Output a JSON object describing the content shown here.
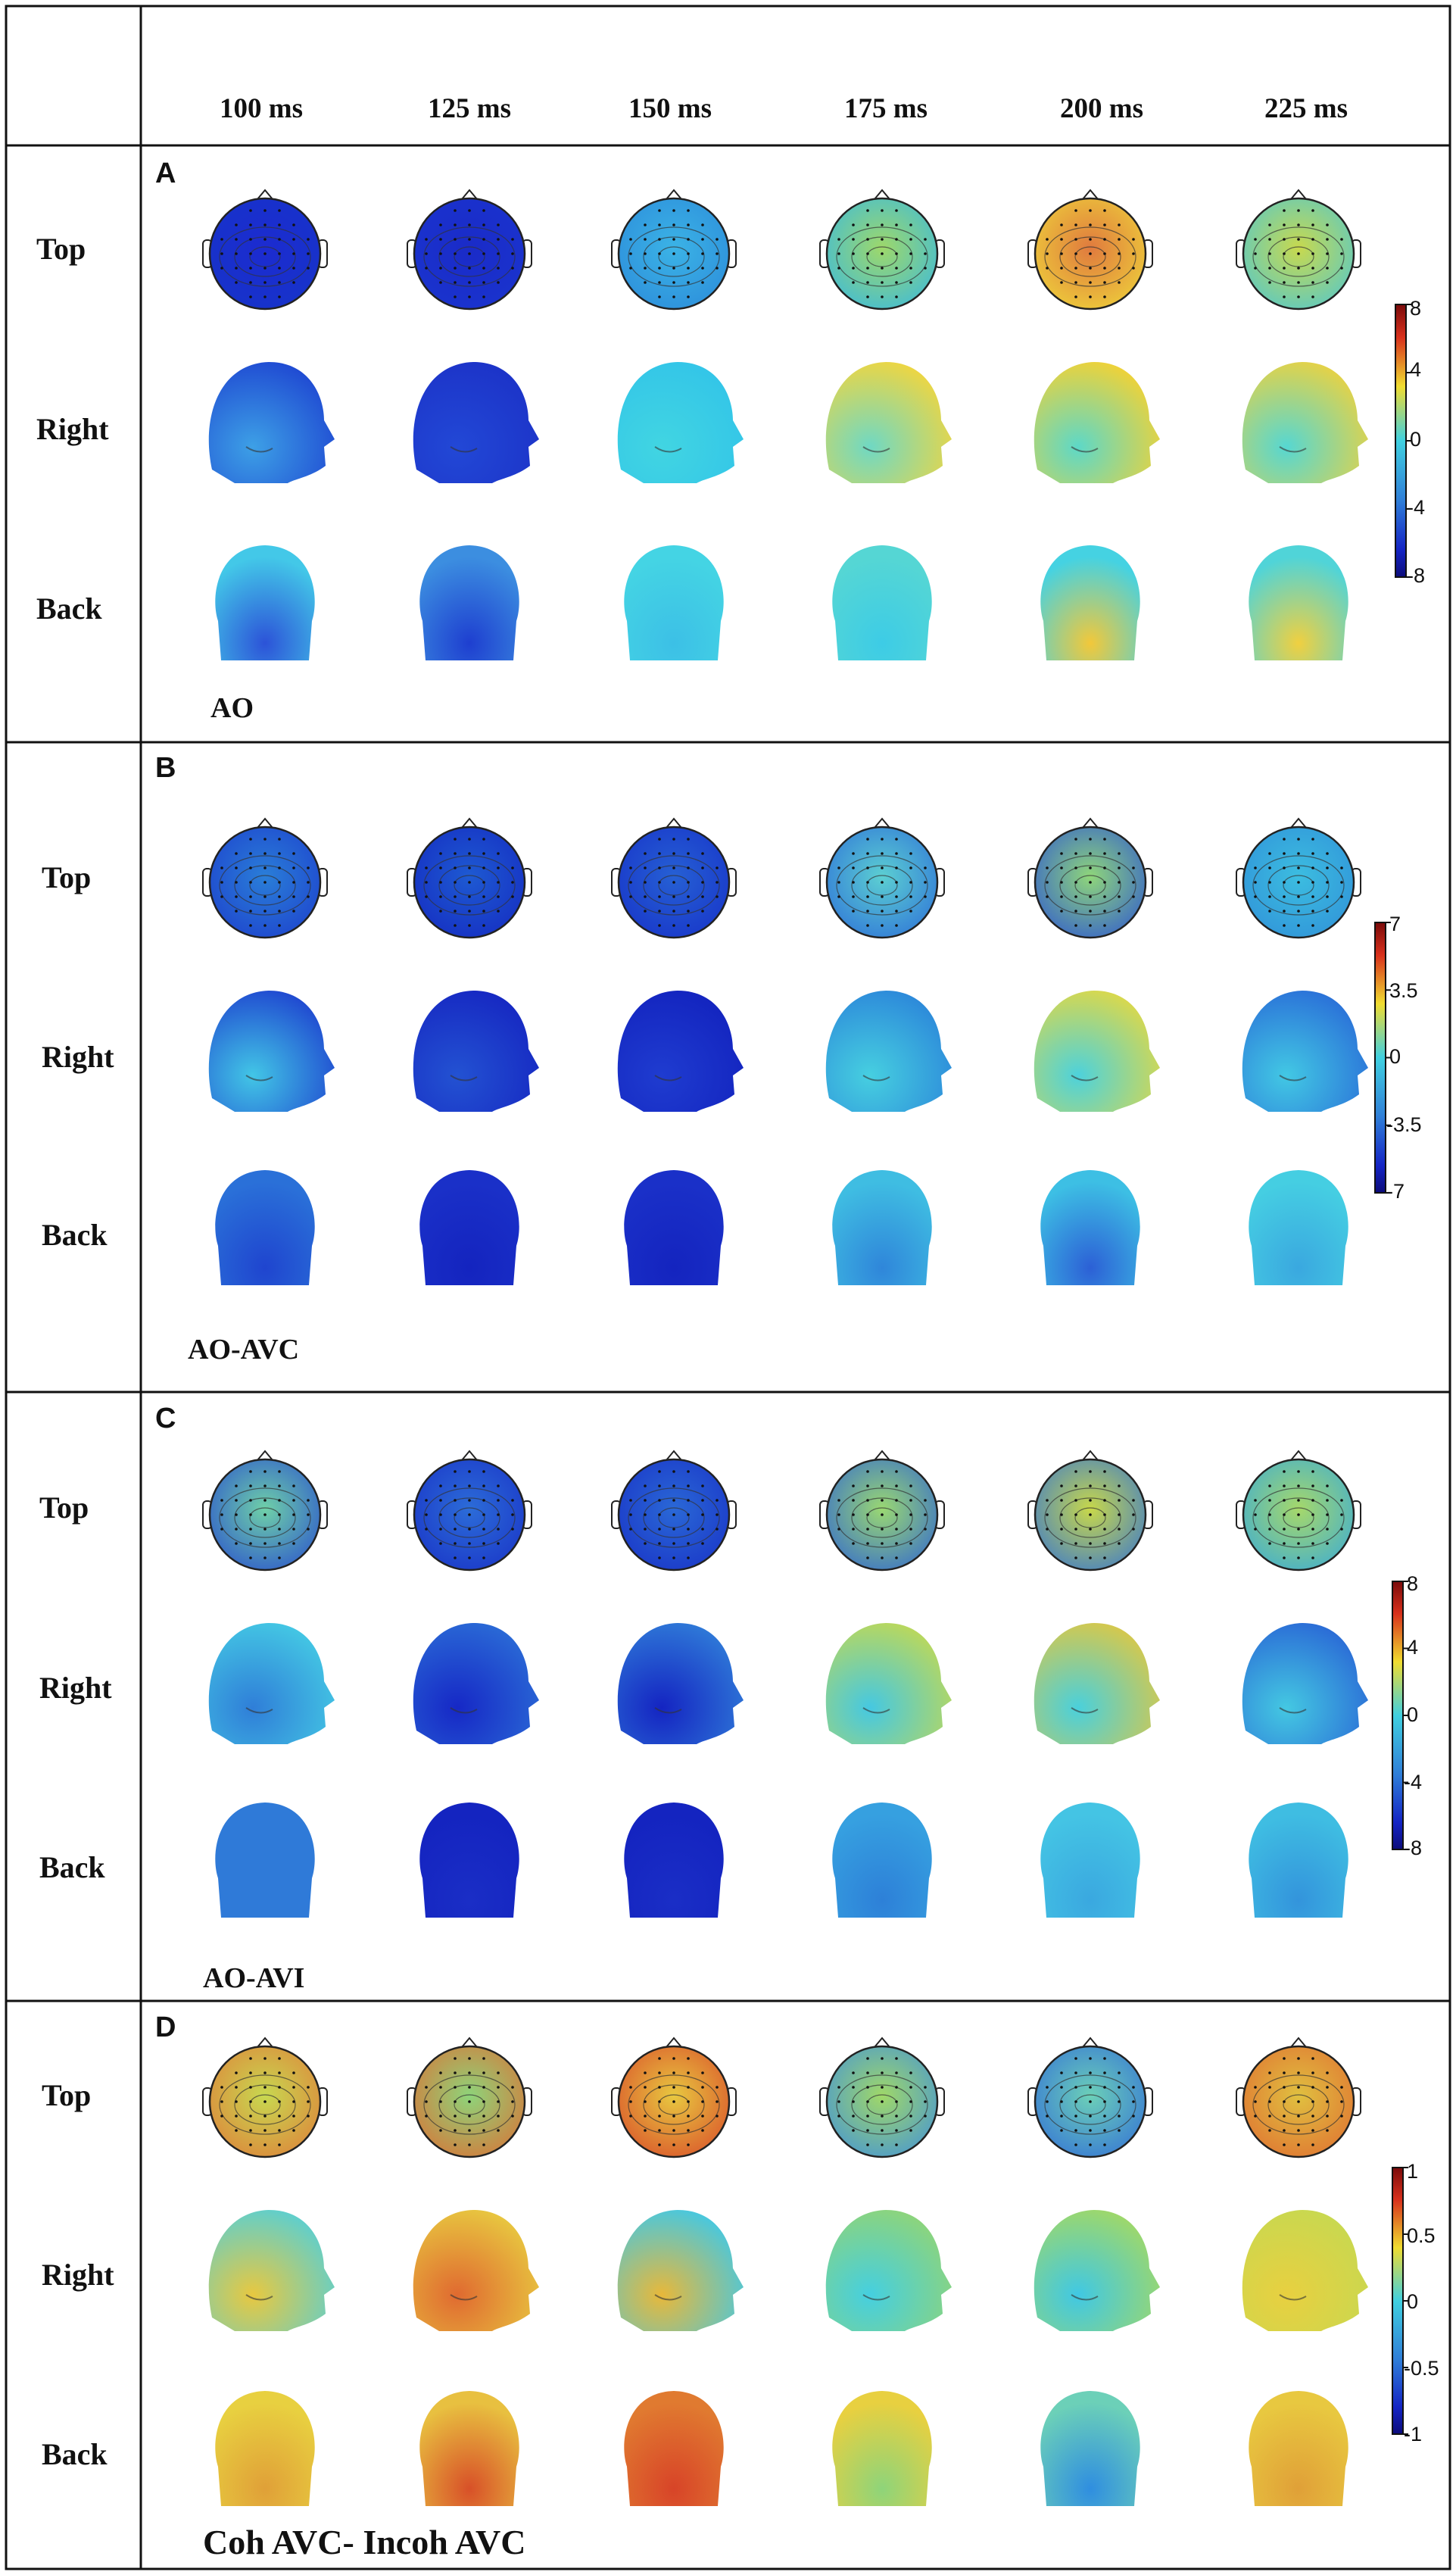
{
  "times": [
    "100 ms",
    "125 ms",
    "150 ms",
    "175 ms",
    "200 ms",
    "225 ms"
  ],
  "views": [
    "Top",
    "Right",
    "Back"
  ],
  "panels": [
    {
      "letter": "A",
      "condition": "AO",
      "colorbar": {
        "max": 8,
        "min": -8,
        "ticks": [
          "8",
          "4",
          "0",
          "-4",
          "-8"
        ]
      },
      "top": [
        [
          "#1c2bd0",
          "#1535c8"
        ],
        [
          "#1a2bc8",
          "#1a35cf"
        ],
        [
          "#3bb3e6",
          "#2b89d9"
        ],
        [
          "#9ed86a",
          "#32b7e8"
        ],
        [
          "#e07a3e",
          "#f0dd3a"
        ],
        [
          "#c8d94e",
          "#48c6d9"
        ]
      ],
      "right": [
        [
          "#3da0e6",
          "#1f49d2"
        ],
        [
          "#2248d6",
          "#1c33c8"
        ],
        [
          "#41d5e2",
          "#33c5e8"
        ],
        [
          "#6fd8c4",
          "#f0d640"
        ],
        [
          "#5dd8c8",
          "#f2d235"
        ],
        [
          "#56d7d2",
          "#e8d244"
        ]
      ],
      "back": [
        [
          "#43c8e8",
          "#2c53d8"
        ],
        [
          "#3c8ee0",
          "#1e3fd0"
        ],
        [
          "#44d4e4",
          "#3cc0e6"
        ],
        [
          "#55d6d4",
          "#3dcce6"
        ],
        [
          "#45d2e2",
          "#f2c83a"
        ],
        [
          "#50d4d8",
          "#f0d040"
        ]
      ]
    },
    {
      "letter": "B",
      "condition": "AO-AVC",
      "colorbar": {
        "max": 7,
        "min": -7,
        "ticks": [
          "7",
          "3.5",
          "0",
          "-3.5",
          "-7"
        ]
      },
      "top": [
        [
          "#2a7ed8",
          "#1c3ccc"
        ],
        [
          "#1e5ad2",
          "#1428c0"
        ],
        [
          "#2660d4",
          "#1630c8"
        ],
        [
          "#5ccfd2",
          "#2a6ad8"
        ],
        [
          "#8fd67a",
          "#2850d6"
        ],
        [
          "#3cbde0",
          "#2f8ed8"
        ]
      ],
      "right": [
        [
          "#42c6e6",
          "#1f47d0"
        ],
        [
          "#2352d2",
          "#1628c2"
        ],
        [
          "#1f3cd0",
          "#1324bf"
        ],
        [
          "#46cfe0",
          "#2c88da"
        ],
        [
          "#4dd2dc",
          "#dcd84a"
        ],
        [
          "#42c8e4",
          "#2a70d8"
        ]
      ],
      "back": [
        [
          "#2a70d8",
          "#1f45cf"
        ],
        [
          "#1a30c8",
          "#1424bf"
        ],
        [
          "#1a30c8",
          "#1424bf"
        ],
        [
          "#3fbde2",
          "#2f86da"
        ],
        [
          "#3dbfe4",
          "#2c60d6"
        ],
        [
          "#45cee2",
          "#3aa8e0"
        ]
      ]
    },
    {
      "letter": "C",
      "condition": "AO-AVI",
      "colorbar": {
        "max": 8,
        "min": -8,
        "ticks": [
          "8",
          "4",
          "0",
          "-4",
          "-8"
        ]
      },
      "top": [
        [
          "#6fd0a8",
          "#2548d0"
        ],
        [
          "#2c6cd8",
          "#1830c6"
        ],
        [
          "#2a68d6",
          "#1830c6"
        ],
        [
          "#9ad872",
          "#2a60d6"
        ],
        [
          "#c8d84a",
          "#2f70d8"
        ],
        [
          "#a6d86a",
          "#33a8de"
        ]
      ],
      "right": [
        [
          "#2f7ed8",
          "#44c8e4"
        ],
        [
          "#1628c6",
          "#2a6ad6"
        ],
        [
          "#1424c2",
          "#2f7ad8"
        ],
        [
          "#45c8e2",
          "#bcd85a"
        ],
        [
          "#4ad0dc",
          "#d8c84a"
        ],
        [
          "#44c8e2",
          "#2a6ad6"
        ]
      ],
      "back": [
        [
          "#2f7ad8",
          "#2f7ad8"
        ],
        [
          "#1424c0",
          "#1a2ec6"
        ],
        [
          "#1424c0",
          "#1a2ec6"
        ],
        [
          "#36a0e0",
          "#2d80d8"
        ],
        [
          "#44c4e4",
          "#3aa8e0"
        ],
        [
          "#3fbde2",
          "#3394dc"
        ]
      ]
    },
    {
      "letter": "D",
      "condition": "Coh AVC- Incoh AVC",
      "colorbar": {
        "max": 1,
        "min": -1,
        "ticks": [
          "1",
          "0.5",
          "0",
          "-0.5",
          "-1"
        ]
      },
      "top": [
        [
          "#c8d850",
          "#e07a38"
        ],
        [
          "#8ed47a",
          "#e06a30"
        ],
        [
          "#e8c840",
          "#d84428"
        ],
        [
          "#a0d868",
          "#3c8ee0"
        ],
        [
          "#6cd0b8",
          "#2f6ad8"
        ],
        [
          "#e0c040",
          "#e06a30"
        ]
      ],
      "right": [
        [
          "#e8c840",
          "#5ccfd0"
        ],
        [
          "#e06a30",
          "#e8c840"
        ],
        [
          "#e8b83a",
          "#45c8e2"
        ],
        [
          "#45cfe0",
          "#8ed47a"
        ],
        [
          "#40c8e4",
          "#a0d868"
        ],
        [
          "#e8d040",
          "#c8d850"
        ]
      ],
      "back": [
        [
          "#e8d040",
          "#e0a038"
        ],
        [
          "#e8c040",
          "#d85028"
        ],
        [
          "#e07a30",
          "#d84428"
        ],
        [
          "#e8d040",
          "#8ed47a"
        ],
        [
          "#6cd0b8",
          "#2f8ee0"
        ],
        [
          "#e8c840",
          "#e0a038"
        ]
      ]
    }
  ]
}
